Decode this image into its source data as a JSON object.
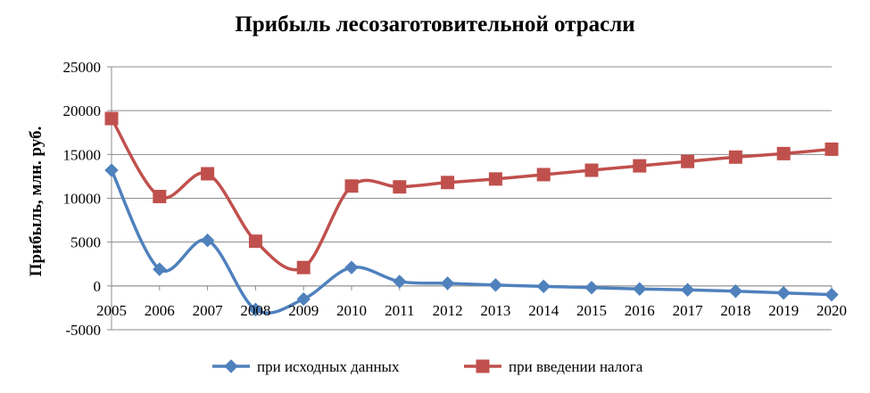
{
  "chart_data": {
    "type": "line",
    "title": "Прибыль лесозаготовительной отрасли",
    "ylabel": "Прибыль, млн. руб.",
    "xlabel": "",
    "categories": [
      "2005",
      "2006",
      "2007",
      "2008",
      "2009",
      "2010",
      "2011",
      "2012",
      "2013",
      "2014",
      "2015",
      "2016",
      "2017",
      "2018",
      "2019",
      "2020"
    ],
    "ylim": [
      -5000,
      25000
    ],
    "yticks": [
      25000,
      20000,
      15000,
      10000,
      5000,
      0,
      -5000
    ],
    "grid": true,
    "smooth": true,
    "legend_position": "bottom",
    "series": [
      {
        "name": "при исходных данных",
        "color": "#4F81BD",
        "marker": "diamond",
        "values": [
          13200,
          1900,
          5200,
          -2700,
          -1500,
          2100,
          500,
          300,
          100,
          -50,
          -200,
          -350,
          -450,
          -600,
          -800,
          -1000
        ]
      },
      {
        "name": "при введении налога",
        "color": "#C0504D",
        "marker": "square",
        "values": [
          19100,
          10200,
          12800,
          5100,
          2100,
          11400,
          11300,
          11800,
          12200,
          12700,
          13200,
          13700,
          14200,
          14700,
          15100,
          15600
        ]
      }
    ]
  }
}
